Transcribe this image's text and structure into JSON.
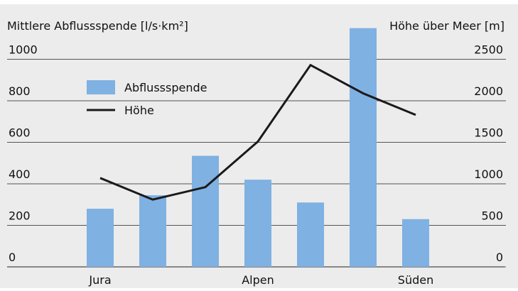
{
  "chart_data": {
    "type": "bar-line",
    "ylabel": "Mittlere Abflussspende [l/s·km²]",
    "y2label": "Höhe über Meer [m]",
    "categories": [
      "Jura",
      null,
      null,
      "Alpen",
      null,
      null,
      "Süden"
    ],
    "series": [
      {
        "name": "Abflussspende",
        "type": "bar",
        "color": "#7fb1e2",
        "values": [
          280,
          345,
          535,
          420,
          310,
          1150,
          230
        ]
      },
      {
        "name": "Höhe",
        "type": "line",
        "axis": "y2",
        "color": "#1a1a1a",
        "values": [
          1070,
          810,
          960,
          1510,
          2430,
          2090,
          1830
        ]
      }
    ],
    "ylim": [
      0,
      1200
    ],
    "yticks": [
      0,
      200,
      400,
      600,
      800,
      1000
    ],
    "y2lim": [
      0,
      3000
    ],
    "y2ticks": [
      0,
      500,
      1000,
      1500,
      2000,
      2500
    ],
    "grid": true,
    "legend": "upper left"
  }
}
